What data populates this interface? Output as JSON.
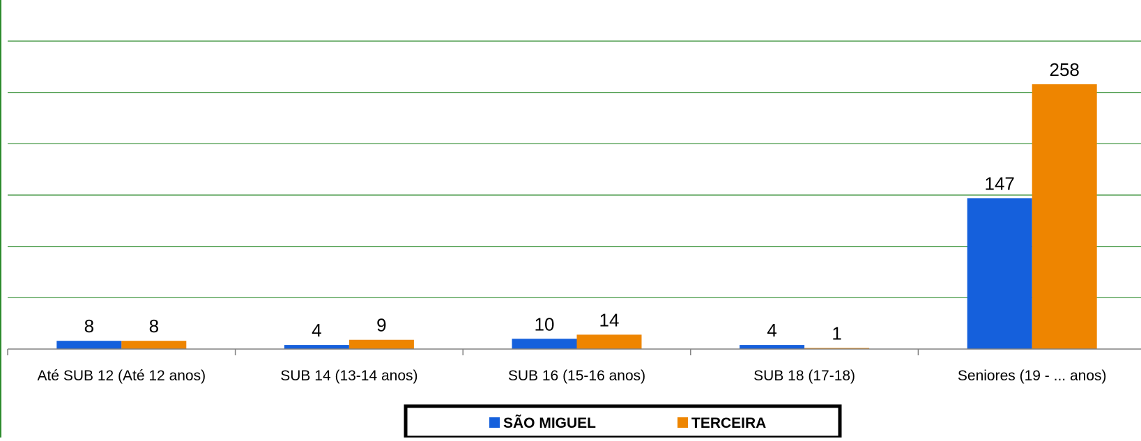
{
  "chart_data": {
    "type": "bar",
    "categories": [
      "Até SUB 12 (Até 12 anos)",
      "SUB 14 (13-14 anos)",
      "SUB 16 (15-16 anos)",
      "SUB 18 (17-18)",
      "Seniores (19 - ... anos)"
    ],
    "series": [
      {
        "name": "SÃO MIGUEL",
        "values": [
          8,
          4,
          10,
          4,
          147
        ],
        "color": "#1560DC"
      },
      {
        "name": "TERCEIRA",
        "values": [
          8,
          9,
          14,
          1,
          258
        ],
        "color": "#EE8500"
      }
    ],
    "ylim": [
      0,
      300
    ],
    "gridline_step": 50,
    "grid": true,
    "grid_color": "#2E8B2E",
    "axis_color": "#808080",
    "legend_position": "bottom-center",
    "title": "",
    "xlabel": "",
    "ylabel": ""
  }
}
